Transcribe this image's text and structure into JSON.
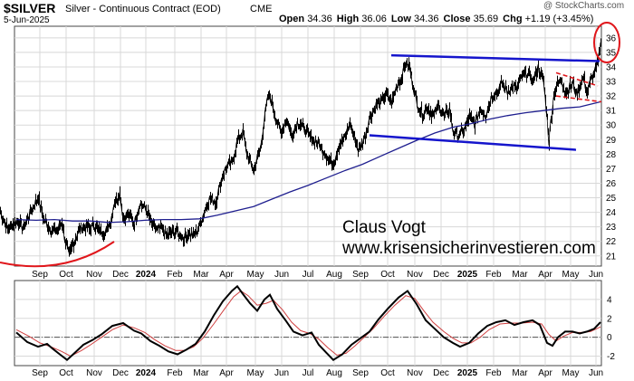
{
  "header": {
    "symbol": "$SILVER",
    "description": "Silver - Continuous Contract (EOD)",
    "exchange": "CME",
    "date": "5-Jun-2025",
    "watermark": "@ StockCharts.com",
    "ohlc": [
      {
        "label": "Open",
        "value": "34.36"
      },
      {
        "label": "High",
        "value": "36.06"
      },
      {
        "label": "Low",
        "value": "34.36"
      },
      {
        "label": "Close",
        "value": "35.69"
      },
      {
        "label": "Chg",
        "value": "+1.19 (+3.45%)"
      }
    ]
  },
  "annotation": {
    "line1": "Claus Vogt",
    "line2": "www.krisensicherinvestieren.com"
  },
  "colors": {
    "price": "#000000",
    "moving_average": "#1f1f8f",
    "channel": "#1515cc",
    "annotation_red": "#e0161b",
    "macd": "#000000",
    "signal": "#d04040"
  },
  "chart_data": [
    {
      "type": "line",
      "panel": "price",
      "description_series": [
        "Silver daily price",
        "Moving average"
      ],
      "x": [
        "Sep",
        "Oct",
        "Nov",
        "Dec",
        "2024",
        "Feb",
        "Mar",
        "Apr",
        "May",
        "Jun",
        "Jul",
        "Aug",
        "Sep",
        "Oct",
        "Nov",
        "Dec",
        "2025",
        "Feb",
        "Mar",
        "Apr",
        "May",
        "Jun"
      ],
      "ylim": [
        20.3,
        36.8
      ],
      "yticks": [
        21,
        22,
        23,
        24,
        25,
        26,
        27,
        28,
        29,
        30,
        31,
        32,
        33,
        34,
        35,
        36
      ],
      "grid": true,
      "price_points": [
        [
          0,
          24.0
        ],
        [
          8,
          22.9
        ],
        [
          18,
          23.4
        ],
        [
          26,
          23.0
        ],
        [
          34,
          24.1
        ],
        [
          42,
          25.0
        ],
        [
          48,
          23.5
        ],
        [
          56,
          22.8
        ],
        [
          62,
          22.7
        ],
        [
          68,
          23.3
        ],
        [
          72,
          22.0
        ],
        [
          76,
          21.0
        ],
        [
          80,
          21.8
        ],
        [
          86,
          22.6
        ],
        [
          92,
          23.1
        ],
        [
          98,
          22.9
        ],
        [
          104,
          23.1
        ],
        [
          110,
          22.7
        ],
        [
          116,
          22.6
        ],
        [
          122,
          23.4
        ],
        [
          126,
          24.7
        ],
        [
          132,
          25.3
        ],
        [
          136,
          23.6
        ],
        [
          142,
          23.9
        ],
        [
          148,
          23.2
        ],
        [
          154,
          24.6
        ],
        [
          160,
          24.3
        ],
        [
          166,
          23.4
        ],
        [
          172,
          22.8
        ],
        [
          178,
          22.9
        ],
        [
          184,
          22.4
        ],
        [
          190,
          22.7
        ],
        [
          196,
          22.6
        ],
        [
          202,
          22.2
        ],
        [
          208,
          22.5
        ],
        [
          214,
          22.4
        ],
        [
          220,
          23.0
        ],
        [
          226,
          24.2
        ],
        [
          232,
          25.0
        ],
        [
          238,
          24.7
        ],
        [
          244,
          26.2
        ],
        [
          250,
          27.2
        ],
        [
          256,
          27.4
        ],
        [
          262,
          28.9
        ],
        [
          268,
          29.5
        ],
        [
          272,
          28.2
        ],
        [
          276,
          27.5
        ],
        [
          280,
          26.8
        ],
        [
          284,
          27.8
        ],
        [
          288,
          28.6
        ],
        [
          292,
          30.6
        ],
        [
          296,
          32.0
        ],
        [
          300,
          31.6
        ],
        [
          304,
          30.5
        ],
        [
          310,
          29.5
        ],
        [
          316,
          30.4
        ],
        [
          322,
          29.3
        ],
        [
          328,
          30.2
        ],
        [
          334,
          29.9
        ],
        [
          340,
          29.3
        ],
        [
          346,
          29.0
        ],
        [
          352,
          28.7
        ],
        [
          358,
          28.1
        ],
        [
          362,
          27.7
        ],
        [
          368,
          27.4
        ],
        [
          374,
          28.6
        ],
        [
          380,
          29.1
        ],
        [
          386,
          30.1
        ],
        [
          392,
          29.0
        ],
        [
          396,
          28.2
        ],
        [
          402,
          29.1
        ],
        [
          408,
          30.5
        ],
        [
          414,
          31.3
        ],
        [
          420,
          31.6
        ],
        [
          426,
          32.1
        ],
        [
          432,
          31.5
        ],
        [
          438,
          32.7
        ],
        [
          444,
          33.4
        ],
        [
          448,
          34.3
        ],
        [
          452,
          34.0
        ],
        [
          456,
          32.7
        ],
        [
          460,
          31.5
        ],
        [
          466,
          30.8
        ],
        [
          472,
          31.2
        ],
        [
          478,
          30.6
        ],
        [
          484,
          31.4
        ],
        [
          490,
          30.6
        ],
        [
          496,
          31.1
        ],
        [
          500,
          29.6
        ],
        [
          506,
          29.3
        ],
        [
          512,
          29.6
        ],
        [
          518,
          30.6
        ],
        [
          524,
          30.0
        ],
        [
          530,
          31.1
        ],
        [
          536,
          30.7
        ],
        [
          542,
          31.9
        ],
        [
          548,
          32.2
        ],
        [
          554,
          32.9
        ],
        [
          560,
          32.3
        ],
        [
          566,
          32.7
        ],
        [
          570,
          32.5
        ],
        [
          576,
          33.4
        ],
        [
          582,
          33.6
        ],
        [
          588,
          33.0
        ],
        [
          594,
          34.0
        ],
        [
          600,
          33.0
        ],
        [
          604,
          30.5
        ],
        [
          606,
          28.8
        ],
        [
          608,
          30.3
        ],
        [
          612,
          32.3
        ],
        [
          616,
          32.9
        ],
        [
          620,
          33.1
        ],
        [
          624,
          32.2
        ],
        [
          628,
          32.6
        ],
        [
          632,
          32.9
        ],
        [
          636,
          32.1
        ],
        [
          640,
          32.7
        ],
        [
          644,
          33.3
        ],
        [
          648,
          32.2
        ],
        [
          652,
          33.1
        ],
        [
          656,
          33.6
        ],
        [
          660,
          34.2
        ],
        [
          663,
          35.69
        ]
      ],
      "moving_average_points": [
        [
          18,
          23.5
        ],
        [
          40,
          23.45
        ],
        [
          60,
          23.5
        ],
        [
          80,
          23.4
        ],
        [
          100,
          23.4
        ],
        [
          120,
          23.3
        ],
        [
          140,
          23.35
        ],
        [
          160,
          23.45
        ],
        [
          180,
          23.5
        ],
        [
          200,
          23.5
        ],
        [
          220,
          23.55
        ],
        [
          240,
          23.8
        ],
        [
          260,
          24.1
        ],
        [
          280,
          24.4
        ],
        [
          300,
          24.9
        ],
        [
          320,
          25.4
        ],
        [
          340,
          25.85
        ],
        [
          360,
          26.35
        ],
        [
          380,
          26.85
        ],
        [
          400,
          27.3
        ],
        [
          420,
          27.85
        ],
        [
          440,
          28.4
        ],
        [
          460,
          28.95
        ],
        [
          480,
          29.45
        ],
        [
          500,
          29.85
        ],
        [
          520,
          30.1
        ],
        [
          540,
          30.4
        ],
        [
          560,
          30.65
        ],
        [
          580,
          30.85
        ],
        [
          600,
          31.0
        ],
        [
          620,
          31.15
        ],
        [
          640,
          31.25
        ],
        [
          663,
          31.6
        ]
      ],
      "channel_lines": [
        {
          "from": [
            432,
            34.8
          ],
          "to": [
            662,
            34.4
          ]
        },
        {
          "from": [
            408,
            29.3
          ],
          "to": [
            636,
            28.3
          ]
        }
      ]
    },
    {
      "type": "line",
      "panel": "oscillator",
      "ylim": [
        -3,
        6
      ],
      "yticks": [
        -2,
        0,
        2,
        4
      ],
      "zero_line": 0,
      "macd_points": [
        [
          18,
          0.5
        ],
        [
          30,
          -0.5
        ],
        [
          42,
          -1.0
        ],
        [
          52,
          -0.7
        ],
        [
          58,
          -1.2
        ],
        [
          66,
          -1.8
        ],
        [
          74,
          -2.4
        ],
        [
          82,
          -1.7
        ],
        [
          92,
          -0.8
        ],
        [
          102,
          -0.3
        ],
        [
          112,
          0.3
        ],
        [
          124,
          1.2
        ],
        [
          136,
          1.5
        ],
        [
          148,
          0.7
        ],
        [
          156,
          0.4
        ],
        [
          166,
          -0.4
        ],
        [
          176,
          -0.9
        ],
        [
          186,
          -1.5
        ],
        [
          196,
          -1.8
        ],
        [
          206,
          -1.3
        ],
        [
          216,
          -0.7
        ],
        [
          226,
          0.6
        ],
        [
          236,
          2.3
        ],
        [
          246,
          3.8
        ],
        [
          256,
          4.9
        ],
        [
          262,
          5.4
        ],
        [
          268,
          4.6
        ],
        [
          276,
          3.6
        ],
        [
          284,
          2.8
        ],
        [
          292,
          4.0
        ],
        [
          298,
          4.5
        ],
        [
          306,
          3.0
        ],
        [
          316,
          1.7
        ],
        [
          324,
          0.6
        ],
        [
          334,
          0.2
        ],
        [
          344,
          0.5
        ],
        [
          352,
          -0.8
        ],
        [
          360,
          -1.6
        ],
        [
          368,
          -2.4
        ],
        [
          378,
          -1.8
        ],
        [
          388,
          -0.8
        ],
        [
          398,
          -0.1
        ],
        [
          408,
          0.6
        ],
        [
          418,
          1.9
        ],
        [
          428,
          3.0
        ],
        [
          440,
          4.2
        ],
        [
          450,
          4.9
        ],
        [
          460,
          3.5
        ],
        [
          470,
          1.8
        ],
        [
          480,
          0.9
        ],
        [
          490,
          0.0
        ],
        [
          500,
          -0.6
        ],
        [
          508,
          -1.0
        ],
        [
          518,
          -0.6
        ],
        [
          528,
          0.4
        ],
        [
          538,
          1.2
        ],
        [
          548,
          1.6
        ],
        [
          558,
          1.8
        ],
        [
          568,
          1.3
        ],
        [
          578,
          1.6
        ],
        [
          588,
          1.8
        ],
        [
          596,
          1.3
        ],
        [
          604,
          -0.6
        ],
        [
          610,
          -0.9
        ],
        [
          616,
          0.0
        ],
        [
          624,
          0.6
        ],
        [
          632,
          0.6
        ],
        [
          640,
          0.4
        ],
        [
          648,
          0.6
        ],
        [
          656,
          0.9
        ],
        [
          663,
          1.6
        ]
      ],
      "signal_points": [
        [
          18,
          0.8
        ],
        [
          32,
          0.1
        ],
        [
          44,
          -0.6
        ],
        [
          56,
          -1.0
        ],
        [
          68,
          -1.5
        ],
        [
          78,
          -2.0
        ],
        [
          90,
          -1.4
        ],
        [
          100,
          -0.8
        ],
        [
          112,
          0.0
        ],
        [
          124,
          0.8
        ],
        [
          136,
          1.3
        ],
        [
          148,
          1.0
        ],
        [
          160,
          0.5
        ],
        [
          170,
          -0.2
        ],
        [
          182,
          -0.9
        ],
        [
          194,
          -1.4
        ],
        [
          204,
          -1.4
        ],
        [
          214,
          -1.0
        ],
        [
          224,
          -0.1
        ],
        [
          236,
          1.4
        ],
        [
          248,
          3.0
        ],
        [
          258,
          4.3
        ],
        [
          266,
          4.9
        ],
        [
          274,
          4.4
        ],
        [
          284,
          3.4
        ],
        [
          294,
          3.6
        ],
        [
          302,
          3.9
        ],
        [
          312,
          2.9
        ],
        [
          322,
          1.6
        ],
        [
          332,
          0.7
        ],
        [
          342,
          0.4
        ],
        [
          352,
          -0.2
        ],
        [
          362,
          -1.1
        ],
        [
          372,
          -1.9
        ],
        [
          382,
          -1.7
        ],
        [
          392,
          -0.9
        ],
        [
          402,
          0.0
        ],
        [
          412,
          0.9
        ],
        [
          424,
          2.2
        ],
        [
          436,
          3.4
        ],
        [
          448,
          4.4
        ],
        [
          458,
          4.1
        ],
        [
          468,
          2.8
        ],
        [
          478,
          1.6
        ],
        [
          490,
          0.6
        ],
        [
          500,
          -0.1
        ],
        [
          510,
          -0.6
        ],
        [
          520,
          -0.6
        ],
        [
          530,
          0.0
        ],
        [
          540,
          0.8
        ],
        [
          552,
          1.4
        ],
        [
          564,
          1.5
        ],
        [
          576,
          1.5
        ],
        [
          588,
          1.6
        ],
        [
          598,
          1.4
        ],
        [
          606,
          0.3
        ],
        [
          614,
          -0.4
        ],
        [
          622,
          0.1
        ],
        [
          632,
          0.5
        ],
        [
          642,
          0.5
        ],
        [
          652,
          0.6
        ],
        [
          663,
          1.1
        ]
      ],
      "x": [
        "Sep",
        "Oct",
        "Nov",
        "Dec",
        "2024",
        "Feb",
        "Mar",
        "Apr",
        "May",
        "Jun",
        "Jul",
        "Aug",
        "Sep",
        "Oct",
        "Nov",
        "Dec",
        "2025",
        "Feb",
        "Mar",
        "Apr",
        "May",
        "Jun"
      ]
    }
  ]
}
